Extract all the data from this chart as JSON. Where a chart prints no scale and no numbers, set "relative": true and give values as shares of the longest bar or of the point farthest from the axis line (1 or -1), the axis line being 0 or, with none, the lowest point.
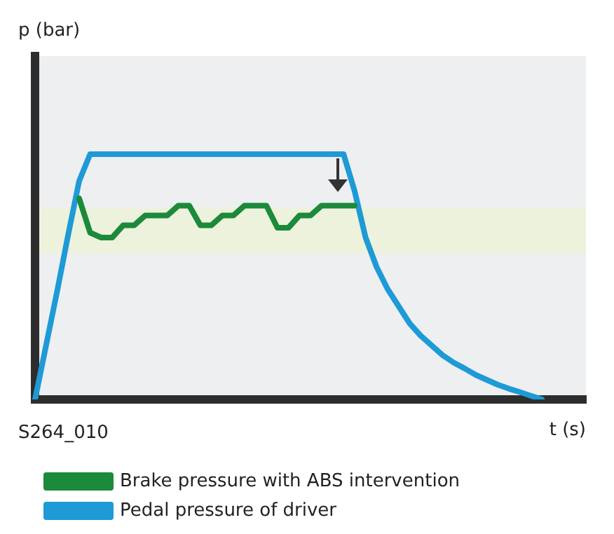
{
  "chart_data": {
    "type": "line",
    "relative": true,
    "xlabel": "t (s)",
    "annotations": [
      "p (bar)",
      "S264_010"
    ],
    "grid": false,
    "legend": "bottom",
    "marker": "none",
    "line_style": "solid",
    "categories": [
      null,
      null,
      null,
      null,
      null,
      null,
      null,
      null,
      null,
      null,
      null,
      null,
      null,
      null,
      null,
      null,
      null,
      null,
      null,
      null,
      null,
      null,
      null,
      null,
      null,
      null,
      null,
      null,
      null,
      null,
      null,
      null,
      null,
      null,
      null,
      null,
      null,
      null,
      null,
      null,
      null,
      null,
      null,
      null,
      null,
      null,
      null,
      null,
      null,
      null,
      null
    ],
    "series": [
      {
        "name": "Brake pressure with ABS intervention",
        "color": "#1b8a3a",
        "values": [
          null,
          null,
          null,
          null,
          0.82,
          0.68,
          0.66,
          0.66,
          0.71,
          0.71,
          0.75,
          0.75,
          0.75,
          0.79,
          0.79,
          0.71,
          0.71,
          0.75,
          0.75,
          0.79,
          0.79,
          0.79,
          0.7,
          0.7,
          0.75,
          0.75,
          0.79,
          0.79,
          0.79,
          0.79,
          null,
          null,
          null,
          null,
          null,
          null,
          null,
          null,
          null,
          null,
          null,
          null,
          null,
          null,
          null,
          null,
          null,
          null,
          null,
          null,
          null
        ]
      },
      {
        "name": "Pedal pressure of driver",
        "color": "#1e9ad6",
        "values": [
          0,
          0.22,
          0.44,
          0.67,
          0.89,
          1,
          1,
          1,
          1,
          1,
          1,
          1,
          1,
          1,
          1,
          1,
          1,
          1,
          1,
          1,
          1,
          1,
          1,
          1,
          1,
          1,
          1,
          1,
          1,
          0.85,
          0.66,
          0.54,
          0.45,
          0.38,
          0.31,
          0.26,
          0.22,
          0.18,
          0.15,
          0.126,
          0.1,
          0.08,
          0.06,
          0.044,
          0.03,
          0.015,
          0,
          null,
          null,
          null,
          null
        ]
      }
    ]
  }
}
